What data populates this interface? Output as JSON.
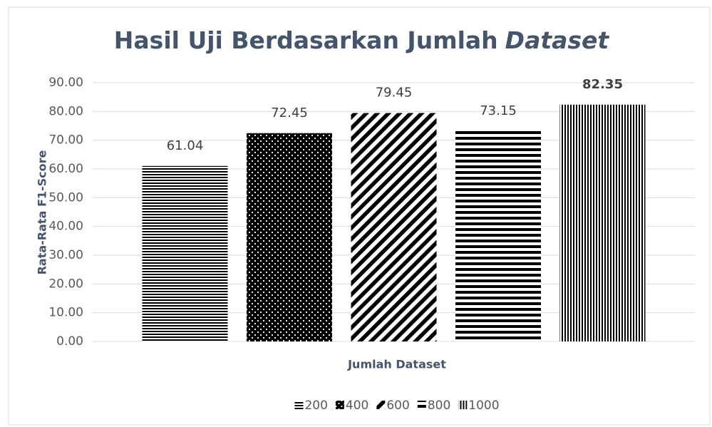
{
  "chart_data": {
    "type": "bar",
    "title_parts": [
      {
        "text": "Hasil Uji Berdasarkan Jumlah",
        "italic": false
      },
      {
        "text": "Dataset",
        "italic": true
      }
    ],
    "x_label": "Jumlah Dataset",
    "y_label": "Rata-Rata F1-Score",
    "categories": [
      null
    ],
    "series": [
      {
        "name": "200",
        "color": "#000000",
        "pattern": "horizontal-thin",
        "values": [
          61.04
        ]
      },
      {
        "name": "400",
        "color": "#000000",
        "pattern": "dots",
        "values": [
          72.45
        ]
      },
      {
        "name": "600",
        "color": "#000000",
        "pattern": "diagonal",
        "values": [
          79.45
        ]
      },
      {
        "name": "800",
        "color": "#000000",
        "pattern": "horizontal-thick",
        "values": [
          73.15
        ]
      },
      {
        "name": "1000",
        "color": "#000000",
        "pattern": "vertical",
        "values": [
          82.35
        ]
      }
    ],
    "ylim": [
      0,
      90
    ],
    "yticks": [
      {
        "value": 0,
        "label": "0.00"
      },
      {
        "value": 10,
        "label": "10.00"
      },
      {
        "value": 20,
        "label": "20.00"
      },
      {
        "value": 30,
        "label": "30.00"
      },
      {
        "value": 40,
        "label": "40.00"
      },
      {
        "value": 50,
        "label": "50.00"
      },
      {
        "value": 60,
        "label": "60.00"
      },
      {
        "value": 70,
        "label": "70.00"
      },
      {
        "value": 80,
        "label": "80.00"
      },
      {
        "value": 90,
        "label": "90.00"
      }
    ],
    "grid": true,
    "legend": "bottom"
  }
}
